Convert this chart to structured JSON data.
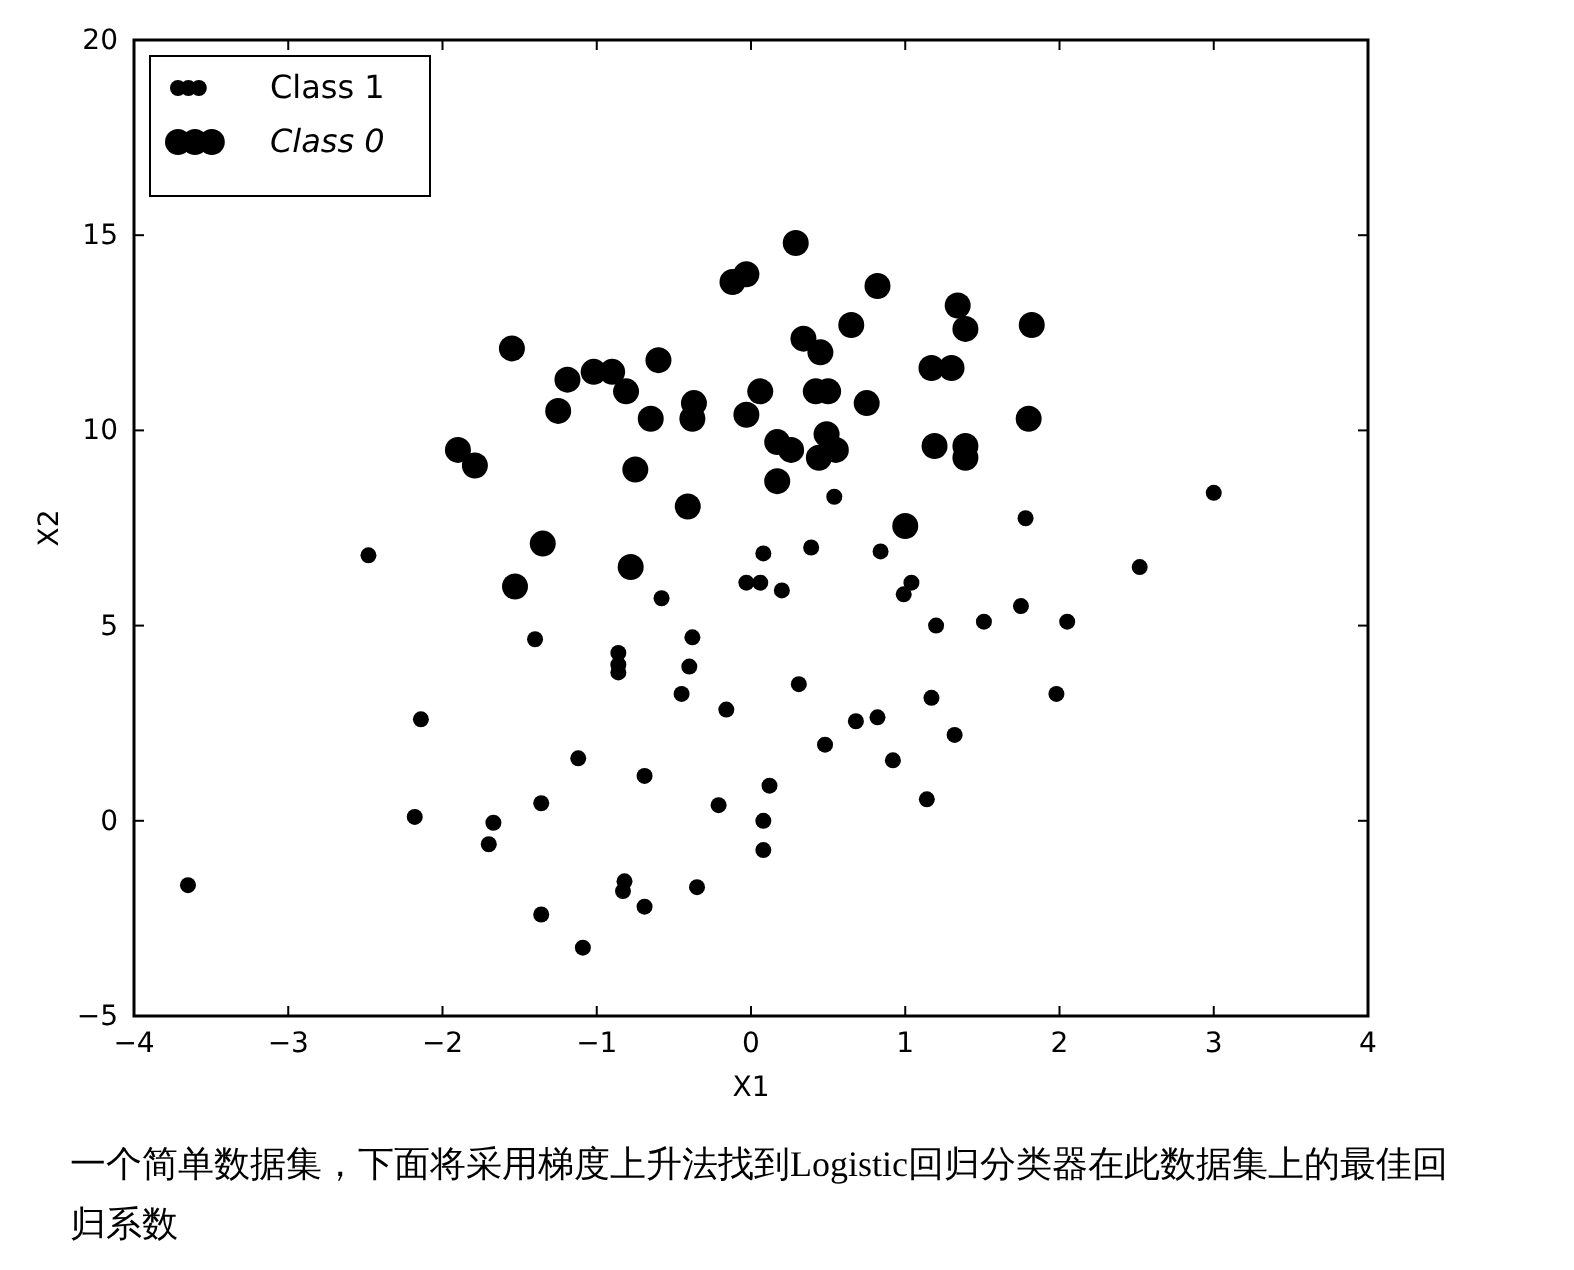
{
  "chart_data": {
    "type": "scatter",
    "xlabel": "X1",
    "ylabel": "X2",
    "xlim": [
      -4,
      4
    ],
    "ylim": [
      -5,
      20
    ],
    "xticks": [
      -4,
      -3,
      -2,
      -1,
      0,
      1,
      2,
      3,
      4
    ],
    "yticks": [
      -5,
      0,
      5,
      10,
      15,
      20
    ],
    "grid": false,
    "legend": "top left",
    "marker": "circle",
    "series": [
      {
        "name": "Class 1",
        "color": "#000000",
        "x": [
          -2.48,
          -0.58,
          0.06,
          0.54,
          3.0,
          1.78,
          0.08,
          0.39,
          0.84,
          2.52,
          -0.03,
          0.2,
          1.04,
          0.99,
          1.2,
          1.51,
          1.75,
          2.05,
          0.31,
          1.17,
          1.98,
          0.48,
          0.68,
          0.82,
          1.32,
          0.92,
          1.14,
          0.12,
          0.08,
          0.08,
          -3.65,
          -2.14,
          -2.18,
          -1.67,
          -1.7,
          -1.4,
          -1.36,
          -1.36,
          -1.09,
          -1.12,
          -0.86,
          -0.86,
          -0.86,
          -0.69,
          -0.82,
          -0.83,
          -0.69,
          -0.45,
          -0.4,
          -0.38,
          -0.16,
          -0.21,
          -0.35
        ],
        "values": [
          6.8,
          5.7,
          6.1,
          8.3,
          8.4,
          7.75,
          6.85,
          7.0,
          6.9,
          6.5,
          6.1,
          5.9,
          6.1,
          5.8,
          5.0,
          5.1,
          5.5,
          5.1,
          3.5,
          3.15,
          3.25,
          1.95,
          2.55,
          2.65,
          2.2,
          1.55,
          0.55,
          0.9,
          0.0,
          -0.75,
          -1.65,
          2.6,
          0.1,
          -0.05,
          -0.6,
          4.65,
          0.45,
          -2.4,
          -3.25,
          1.6,
          4.3,
          4.0,
          3.8,
          1.15,
          -1.55,
          -1.8,
          -2.2,
          3.25,
          3.95,
          4.7,
          2.85,
          0.4,
          -1.7
        ]
      },
      {
        "name": "Class 0",
        "color": "#000000",
        "x": [
          0.29,
          -0.03,
          -0.12,
          0.82,
          1.34,
          1.39,
          1.82,
          0.34,
          0.45,
          0.65,
          1.17,
          1.3,
          0.06,
          0.42,
          0.5,
          0.75,
          -0.03,
          0.17,
          0.26,
          0.49,
          0.55,
          0.44,
          0.17,
          1.19,
          1.39,
          1.39,
          1.8,
          1.0,
          -1.55,
          -1.19,
          -1.02,
          -0.9,
          -0.6,
          -0.81,
          -0.37,
          -0.38,
          -0.65,
          -1.25,
          -1.9,
          -1.79,
          -0.75,
          -0.41,
          -1.35,
          -0.78,
          -1.53
        ],
        "values": [
          14.8,
          14.0,
          13.8,
          13.7,
          13.2,
          12.6,
          12.7,
          12.35,
          12.0,
          12.7,
          11.6,
          11.6,
          11.0,
          11.0,
          11.0,
          10.7,
          10.4,
          9.7,
          9.5,
          9.9,
          9.5,
          9.3,
          8.7,
          9.6,
          9.6,
          9.3,
          10.3,
          7.55,
          12.1,
          11.3,
          11.5,
          11.5,
          11.8,
          11.0,
          10.7,
          10.3,
          10.3,
          10.5,
          9.5,
          9.1,
          9.0,
          8.05,
          7.1,
          6.5,
          6.0
        ]
      }
    ],
    "annotations": [
      "一个简单数据集，下面将采用梯度上升法找到Logistic回归分类器在此数据集上的最佳回归系数"
    ]
  }
}
